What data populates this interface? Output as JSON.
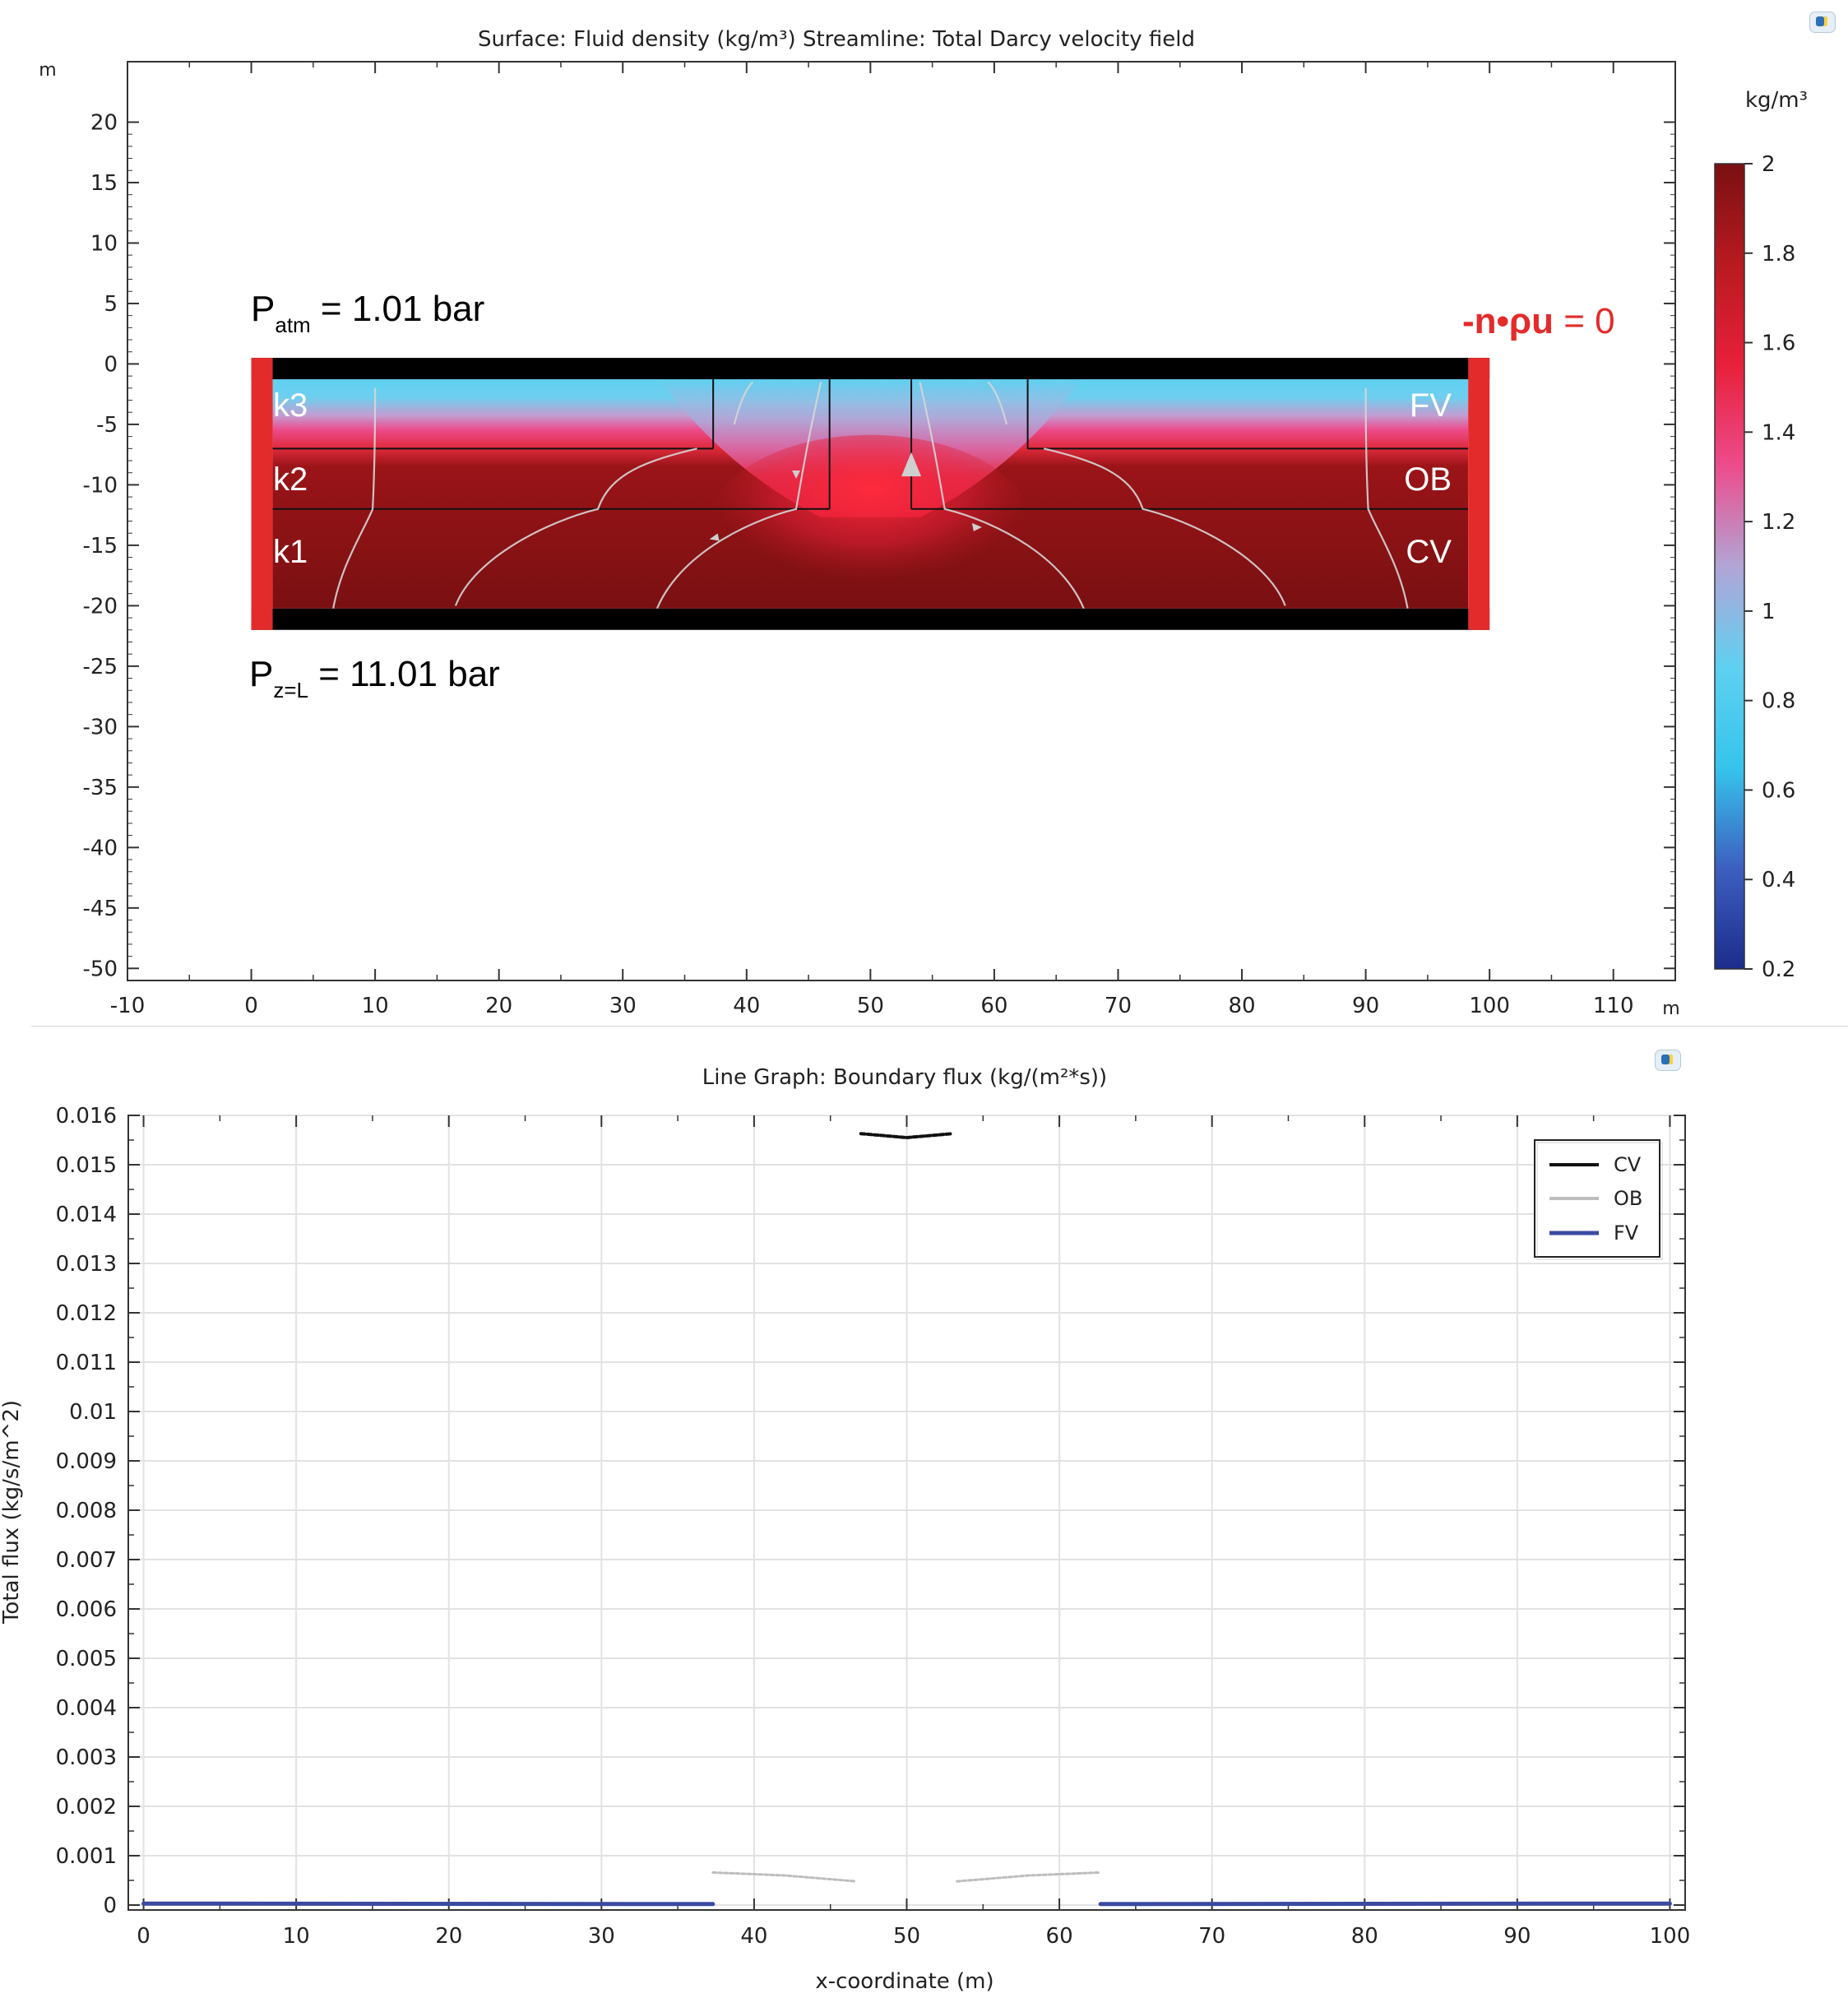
{
  "chart_data": [
    {
      "type": "heatmap",
      "title": "Surface: Fluid density (kg/m³)  Streamline: Total Darcy velocity field",
      "x_unit": "m",
      "y_unit": "m",
      "xlim": [
        -10,
        115
      ],
      "ylim": [
        -51,
        25
      ],
      "x_ticks": [
        "-10",
        "0",
        "10",
        "20",
        "30",
        "40",
        "50",
        "60",
        "70",
        "80",
        "90",
        "100",
        "110"
      ],
      "y_ticks": [
        "20",
        "15",
        "10",
        "5",
        "0",
        "-5",
        "-10",
        "-15",
        "-20",
        "-25",
        "-30",
        "-35",
        "-40",
        "-45",
        "-50"
      ],
      "colorbar": {
        "unit": "kg/m³",
        "range": [
          0.2,
          2
        ],
        "ticks": [
          "2",
          "1.8",
          "1.6",
          "1.4",
          "1.2",
          "1",
          "0.8",
          "0.6",
          "0.4",
          "0.2"
        ],
        "stops": [
          "#1c2c8c",
          "#3d5fc0",
          "#36c4ec",
          "#5fd0f0",
          "#b2a5d6",
          "#ec4c8c",
          "#e8203a",
          "#b81a20",
          "#7a1012"
        ]
      },
      "domain_box": {
        "x": [
          0,
          100
        ],
        "y": [
          -22,
          0.5
        ]
      },
      "layer_tops": [
        -1,
        -7,
        -12,
        -21
      ],
      "region_labels": [
        "k3",
        "k2",
        "k1",
        "FV",
        "OB",
        "CV"
      ],
      "annotations": {
        "top_pressure_base": "P",
        "top_pressure_sub": "atm",
        "top_pressure_rest": " = 1.01 bar",
        "bottom_pressure_base": "P",
        "bottom_pressure_sub": "z=L",
        "bottom_pressure_rest": " = 11.01 bar",
        "side_condition_bold": "-n•ρu",
        "side_condition_rest": " = 0"
      },
      "colors": {
        "side_boundary": "#e42b2b",
        "annotation_red": "#e42b2b",
        "boundary_black": "#000000",
        "top_fluid": "#5fd0f0",
        "mid_fluid": "#e8203a",
        "deep_fluid": "#7a1012"
      }
    },
    {
      "type": "line",
      "title": "Line Graph: Boundary flux (kg/(m²*s))",
      "xlabel": "x-coordinate (m)",
      "ylabel": "Total flux (kg/s/m^2)",
      "xlim": [
        -1,
        101
      ],
      "ylim": [
        -0.0001,
        0.016
      ],
      "x_ticks": [
        "0",
        "10",
        "20",
        "30",
        "40",
        "50",
        "60",
        "70",
        "80",
        "90",
        "100"
      ],
      "y_ticks": [
        "0.016",
        "0.015",
        "0.014",
        "0.013",
        "0.012",
        "0.011",
        "0.01",
        "0.009",
        "0.008",
        "0.007",
        "0.006",
        "0.005",
        "0.004",
        "0.003",
        "0.002",
        "0.001",
        "0"
      ],
      "grid": true,
      "legend_position": "top-right",
      "series": [
        {
          "name": "CV",
          "color": "#111111",
          "segments": [
            [
              [
                47,
                0.01563
              ],
              [
                50,
                0.01555
              ],
              [
                53,
                0.01563
              ]
            ]
          ]
        },
        {
          "name": "OB",
          "color": "#bdbdbd",
          "segments": [
            [
              [
                37.3,
                0.00066
              ],
              [
                42,
                0.0006
              ],
              [
                46.7,
                0.00048
              ]
            ],
            [
              [
                53.3,
                0.00048
              ],
              [
                58,
                0.0006
              ],
              [
                62.7,
                0.00066
              ]
            ]
          ]
        },
        {
          "name": "FV",
          "color": "#3b4aa0",
          "segments": [
            [
              [
                0,
                3e-05
              ],
              [
                37.3,
                2e-05
              ]
            ],
            [
              [
                62.7,
                2e-05
              ],
              [
                100,
                3e-05
              ]
            ]
          ]
        }
      ]
    }
  ]
}
